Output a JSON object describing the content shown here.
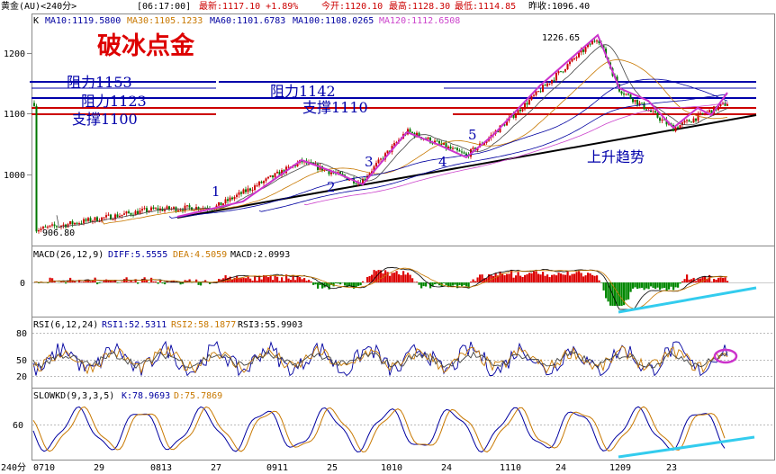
{
  "header": {
    "symbol": "黄金(AU)<240分>",
    "time": "[06:17:00]",
    "latest": "最新:1117.10 +1.89%",
    "open": "今开:1120.10",
    "high": "最高:1128.30",
    "low": "最低:1114.85",
    "prev_close": "昨收:1096.40"
  },
  "main_panel": {
    "indicator_prefix": "K",
    "ma": [
      {
        "label": "MA10:1119.5800",
        "color": "#0000a0"
      },
      {
        "label": "MA30:1105.1233",
        "color": "#c87800"
      },
      {
        "label": "MA60:1101.6783",
        "color": "#0000a0"
      },
      {
        "label": "MA100:1108.0265",
        "color": "#0000a0"
      },
      {
        "label": "MA120:1112.6508",
        "color": "#cc44cc"
      }
    ],
    "title": "破冰点金",
    "y_ticks": [
      "1200",
      "1100",
      "1000"
    ],
    "peak_label": "1226.65",
    "low_label": "906.80",
    "resistance_labels": [
      "阻力1153",
      "阻力1123",
      "阻力1142"
    ],
    "support_labels": [
      "支撑1100",
      "支撑1110"
    ],
    "wave_labels": [
      "1",
      "2",
      "3",
      "4",
      "5"
    ],
    "trend_label": "上升趋势"
  },
  "macd_panel": {
    "label_head": "MACD(26,12,9)",
    "diff": "DIFF:5.5555",
    "dea": "DEA:4.5059",
    "macd": "MACD:2.0993",
    "zero_tick": "0"
  },
  "rsi_panel": {
    "label_head": "RSI(6,12,24)",
    "rsi1": "RSI1:52.5311",
    "rsi2": "RSI2:58.1877",
    "rsi3": "RSI3:55.9903",
    "ticks": [
      "80",
      "50",
      "20"
    ]
  },
  "kd_panel": {
    "label_head": "SLOWKD(9,3,3,5)",
    "k": "K:78.9693",
    "d": "D:75.7869",
    "tick": "60"
  },
  "x_axis": {
    "period": "240分",
    "ticks": [
      "0710",
      "29",
      "0813",
      "27",
      "0911",
      "25",
      "1010",
      "24",
      "1110",
      "24",
      "1209",
      "23"
    ]
  },
  "colors": {
    "resistance": "#0000aa",
    "support": "#cc0000",
    "wave": "#cc33cc",
    "trend": "#000000",
    "divergence": "#33ccee",
    "up_candle": "#cc0000",
    "down_candle": "#007700",
    "macd_pos": "#dd0000",
    "macd_neg": "#008800"
  },
  "chart_data": [
    {
      "type": "candlestick",
      "title": "破冰点金",
      "ylim": [
        880,
        1240
      ],
      "price_path": [
        {
          "x": "0710",
          "price": 906.8
        },
        {
          "x": "0813",
          "price": 940
        },
        {
          "x": "wave1",
          "price": 945
        },
        {
          "x": "0911-",
          "price": 1020
        },
        {
          "x": "wave2",
          "price": 985
        },
        {
          "x": "wave3",
          "price": 1070
        },
        {
          "x": "1010",
          "price": 1060
        },
        {
          "x": "wave4",
          "price": 1030
        },
        {
          "x": "wave5",
          "price": 1055
        },
        {
          "x": "peak",
          "price": 1226.65
        },
        {
          "x": "1209",
          "price": 1140
        },
        {
          "x": "low",
          "price": 1075
        },
        {
          "x": "last",
          "price": 1117.1
        }
      ],
      "resistance": [
        1153,
        1123,
        1142
      ],
      "support": [
        1100,
        1110
      ],
      "last_price": 1117.1
    },
    {
      "type": "bar",
      "title": "MACD(26,12,9)",
      "DIFF": 5.5555,
      "DEA": 4.5059,
      "MACD": 2.0993
    },
    {
      "type": "line",
      "title": "RSI(6,12,24)",
      "RSI1": 52.5311,
      "RSI2": 58.1877,
      "RSI3": 55.9903,
      "ylim": [
        20,
        80
      ]
    },
    {
      "type": "line",
      "title": "SLOWKD(9,3,3,5)",
      "K": 78.9693,
      "D": 75.7869
    }
  ]
}
